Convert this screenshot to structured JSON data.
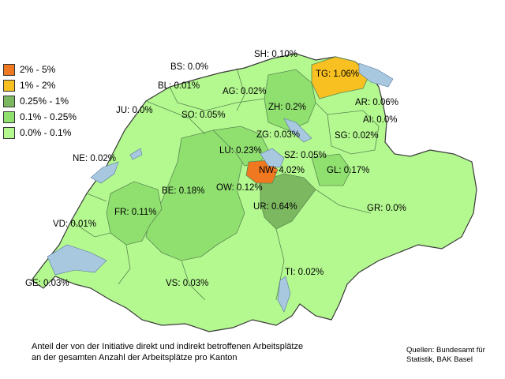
{
  "legend": [
    {
      "label": "2% - 5%",
      "color": "#f07820"
    },
    {
      "label": "1% - 2%",
      "color": "#f8c020"
    },
    {
      "label": "0.25% - 1%",
      "color": "#7cb860"
    },
    {
      "label": "0.1% - 0.25%",
      "color": "#90e070"
    },
    {
      "label": "0.0% - 0.1%",
      "color": "#b4f890"
    }
  ],
  "colors": {
    "water": "#a8c8e0",
    "border": "#5a8a50",
    "outline": "#3a3a3a"
  },
  "cantons": [
    {
      "code": "SH",
      "text": "SH: 0.10%"
    },
    {
      "code": "BS",
      "text": "BS: 0.0%"
    },
    {
      "code": "TG",
      "text": "TG: 1.06%"
    },
    {
      "code": "BL",
      "text": "BL: 0.01%"
    },
    {
      "code": "AG",
      "text": "AG: 0.02%"
    },
    {
      "code": "JU",
      "text": "JU: 0.0%"
    },
    {
      "code": "ZH",
      "text": "ZH: 0.2%"
    },
    {
      "code": "AR",
      "text": "AR: 0.06%"
    },
    {
      "code": "SO",
      "text": "SO: 0.05%"
    },
    {
      "code": "AI",
      "text": "AI: 0.0%"
    },
    {
      "code": "ZG",
      "text": "ZG: 0.03%"
    },
    {
      "code": "SG",
      "text": "SG: 0.02%"
    },
    {
      "code": "LU",
      "text": "LU: 0.23%"
    },
    {
      "code": "NE",
      "text": "NE: 0.02%"
    },
    {
      "code": "SZ",
      "text": "SZ: 0.05%"
    },
    {
      "code": "NW",
      "text": "NW: 4.02%"
    },
    {
      "code": "GL",
      "text": "GL: 0.17%"
    },
    {
      "code": "BE",
      "text": "BE: 0.18%"
    },
    {
      "code": "OW",
      "text": "OW: 0.12%"
    },
    {
      "code": "FR",
      "text": "FR: 0.11%"
    },
    {
      "code": "UR",
      "text": "UR: 0.64%"
    },
    {
      "code": "GR",
      "text": "GR: 0.0%"
    },
    {
      "code": "VD",
      "text": "VD: 0.01%"
    },
    {
      "code": "TI",
      "text": "TI: 0.02%"
    },
    {
      "code": "GE",
      "text": "GE: 0.03%"
    },
    {
      "code": "VS",
      "text": "VS: 0.03%"
    }
  ],
  "caption": {
    "line1": "Anteil der von der Initiative direkt und indirekt betroffenen Arbeitsplätze",
    "line2": "an der gesamten Anzahl der Arbeitsplätze pro Kanton"
  },
  "source": {
    "line1": "Quellen: Bundesamt für",
    "line2": "Statistik, BAK Basel"
  }
}
